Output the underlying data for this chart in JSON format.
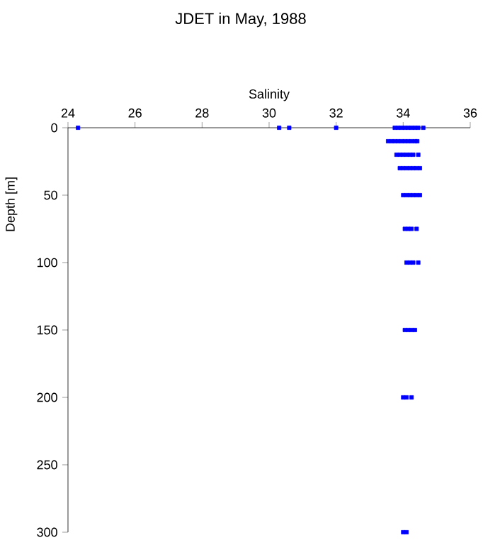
{
  "chart_data": {
    "type": "scatter",
    "title": "JDET in May, 1988",
    "xlabel": "Salinity",
    "ylabel": "Depth [m]",
    "xlim": [
      24,
      36
    ],
    "xticks": [
      24,
      26,
      28,
      30,
      32,
      34,
      36
    ],
    "ylim": [
      300,
      0
    ],
    "yticks": [
      0,
      50,
      100,
      150,
      200,
      250,
      300
    ],
    "marker": "square",
    "series": [
      {
        "color": "#0000ff",
        "x": [
          24.3,
          30.3,
          30.6,
          32.0,
          33.75,
          33.85,
          33.95,
          34.05,
          34.15,
          34.25,
          34.35,
          34.45,
          34.6,
          33.55,
          33.65,
          33.75,
          33.85,
          33.95,
          34.05,
          34.15,
          34.25,
          34.35,
          34.42,
          33.8,
          33.9,
          34.0,
          34.1,
          34.2,
          34.3,
          34.45,
          33.9,
          34.0,
          34.1,
          34.2,
          34.3,
          34.4,
          34.5,
          34.0,
          34.1,
          34.2,
          34.3,
          34.4,
          34.5,
          34.05,
          34.15,
          34.25,
          34.4,
          34.1,
          34.2,
          34.3,
          34.45,
          34.05,
          34.15,
          34.25,
          34.35,
          34.0,
          34.1,
          34.25,
          34.0,
          34.1
        ],
        "values": [
          0,
          0,
          0,
          0,
          0,
          0,
          0,
          0,
          0,
          0,
          0,
          0,
          0,
          10,
          10,
          10,
          10,
          10,
          10,
          10,
          10,
          10,
          10,
          20,
          20,
          20,
          20,
          20,
          20,
          20,
          30,
          30,
          30,
          30,
          30,
          30,
          30,
          50,
          50,
          50,
          50,
          50,
          50,
          75,
          75,
          75,
          75,
          100,
          100,
          100,
          100,
          150,
          150,
          150,
          150,
          200,
          200,
          200,
          300,
          300
        ]
      }
    ]
  }
}
